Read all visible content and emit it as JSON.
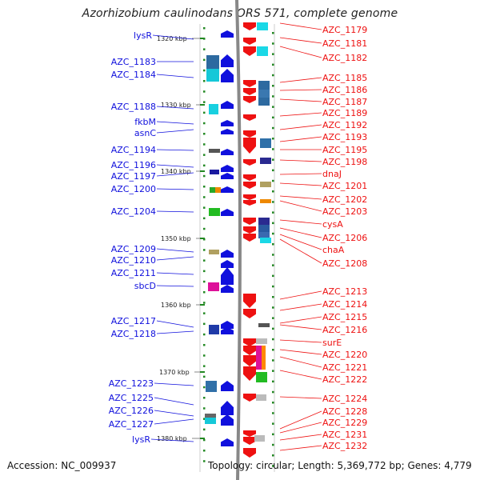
{
  "title": "Azorhizobium caulinodans ORS 571, complete genome",
  "footer": {
    "accession": "Accession: NC_009937",
    "summary": "Topology: circular; Length: 5,369,772 bp; Genes: 4,779"
  },
  "colors": {
    "left_genes": "#1010dd",
    "right_genes": "#ee1111",
    "backbone": "#888888",
    "ticks": "#228822"
  },
  "scale_ticks": [
    {
      "label": "1320 kbp",
      "side": "left"
    },
    {
      "label": "1330 kbp",
      "side": "left"
    },
    {
      "label": "1340 kbp",
      "side": "left"
    },
    {
      "label": "1350 kbp",
      "side": "left"
    },
    {
      "label": "1360 kbp",
      "side": "left"
    },
    {
      "label": "1370 kbp",
      "side": "left"
    },
    {
      "label": "1380 kbp",
      "side": "left"
    }
  ],
  "left_labels": [
    "lysR",
    "AZC_1183",
    "AZC_1184",
    "AZC_1188",
    "fkbM",
    "asnC",
    "AZC_1194",
    "AZC_1196",
    "AZC_1197",
    "AZC_1200",
    "AZC_1204",
    "AZC_1209",
    "AZC_1210",
    "AZC_1211",
    "sbcD",
    "AZC_1217",
    "AZC_1218",
    "AZC_1223",
    "AZC_1225",
    "AZC_1226",
    "AZC_1227",
    "lysR"
  ],
  "right_labels": [
    "AZC_1179",
    "AZC_1181",
    "AZC_1182",
    "AZC_1185",
    "AZC_1186",
    "AZC_1187",
    "AZC_1189",
    "AZC_1192",
    "AZC_1193",
    "AZC_1195",
    "AZC_1198",
    "dnaJ",
    "AZC_1201",
    "AZC_1202",
    "AZC_1203",
    "cysA",
    "AZC_1206",
    "chaA",
    "AZC_1208",
    "AZC_1213",
    "AZC_1214",
    "AZC_1215",
    "AZC_1216",
    "surE",
    "AZC_1220",
    "AZC_1221",
    "AZC_1222",
    "AZC_1224",
    "AZC_1228",
    "AZC_1229",
    "AZC_1231",
    "AZC_1232"
  ]
}
